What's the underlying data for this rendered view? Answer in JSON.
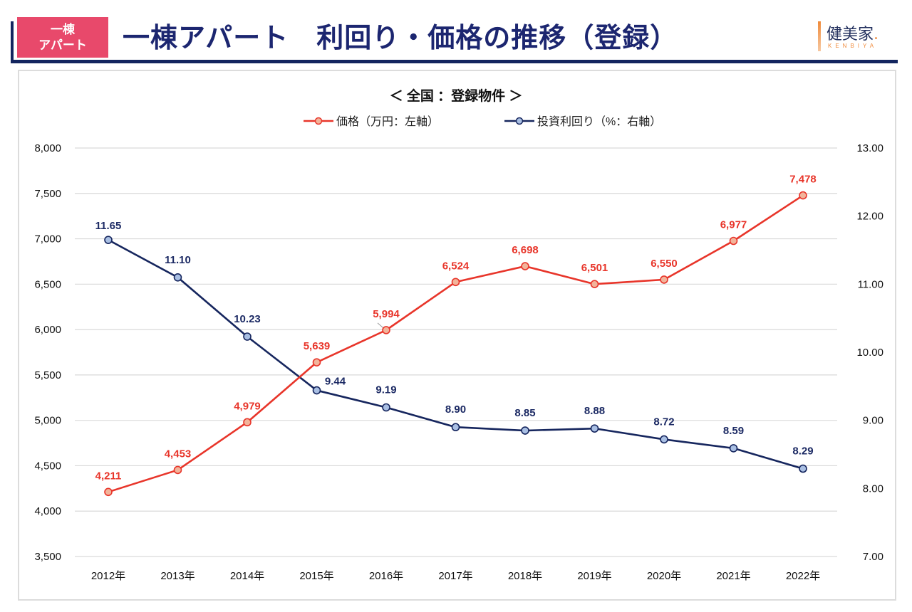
{
  "header": {
    "badge_line1": "一棟",
    "badge_line2": "アパート",
    "title": "一棟アパート　利回り・価格の推移（登録）",
    "logo_main": "健美家",
    "logo_dot": ".",
    "logo_sub": "KENBIYA"
  },
  "colors": {
    "price_line": "#e8352a",
    "price_marker_fill": "#f2b49b",
    "yield_line": "#16265e",
    "yield_marker_fill": "#a9bfe3",
    "header_navy": "#13255f",
    "badge_pink": "#e8496b",
    "grid": "#d9d9d9"
  },
  "chart_data": {
    "type": "line",
    "title": "＜ 全国 ：登録物件 ＞",
    "categories": [
      "2012年",
      "2013年",
      "2014年",
      "2015年",
      "2016年",
      "2017年",
      "2018年",
      "2019年",
      "2020年",
      "2021年",
      "2022年"
    ],
    "series": [
      {
        "name": "価格（万円：左軸）",
        "axis": "left",
        "values": [
          4211,
          4453,
          4979,
          5639,
          5994,
          6524,
          6698,
          6501,
          6550,
          6977,
          7478
        ],
        "labels": [
          "4,211",
          "4,453",
          "4,979",
          "5,639",
          "5,994",
          "6,524",
          "6,698",
          "6,501",
          "6,550",
          "6,977",
          "7,478"
        ]
      },
      {
        "name": "投資利回り（%：右軸）",
        "axis": "right",
        "values": [
          11.65,
          11.1,
          10.23,
          9.44,
          9.19,
          8.9,
          8.85,
          8.88,
          8.72,
          8.59,
          8.29
        ],
        "labels": [
          "11.65",
          "11.10",
          "10.23",
          "9.44",
          "9.19",
          "8.90",
          "8.85",
          "8.88",
          "8.72",
          "8.59",
          "8.29"
        ]
      }
    ],
    "left_axis": {
      "ylim": [
        3500,
        8000
      ],
      "ticks": [
        3500,
        4000,
        4500,
        5000,
        5500,
        6000,
        6500,
        7000,
        7500,
        8000
      ],
      "tick_labels": [
        "3,500",
        "4,000",
        "4,500",
        "5,000",
        "5,500",
        "6,000",
        "6,500",
        "7,000",
        "7,500",
        "8,000"
      ]
    },
    "right_axis": {
      "ylim": [
        7,
        13
      ],
      "ticks": [
        7,
        8,
        9,
        10,
        11,
        12,
        13
      ],
      "tick_labels": [
        "7.00",
        "8.00",
        "9.00",
        "10.00",
        "11.00",
        "12.00",
        "13.00"
      ]
    },
    "grid": true,
    "legend_position": "top-center"
  }
}
